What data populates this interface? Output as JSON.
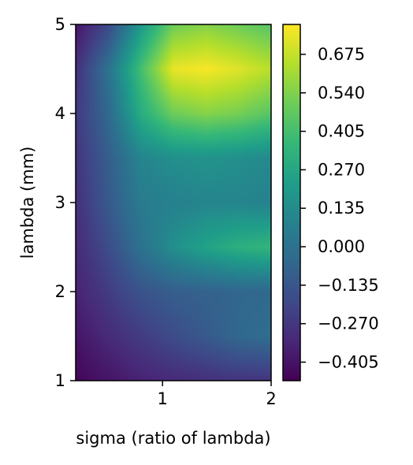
{
  "chart_data": {
    "type": "heatmap",
    "title": "",
    "xlabel": "sigma (ratio of lambda)",
    "ylabel": "lambda (mm)",
    "xlim": [
      0.2,
      2.0
    ],
    "ylim": [
      1,
      5
    ],
    "x_ticks": [
      "1",
      "2"
    ],
    "x_tick_values": [
      1,
      2
    ],
    "y_ticks": [
      "1",
      "2",
      "3",
      "4",
      "5"
    ],
    "y_tick_values": [
      1,
      2,
      3,
      4,
      5
    ],
    "colormap": "viridis",
    "color_range": [
      -0.47,
      0.78
    ],
    "colorbar_ticks": [
      "0.675",
      "0.540",
      "0.405",
      "0.270",
      "0.135",
      "0.000",
      "−0.135",
      "−0.270",
      "−0.405"
    ],
    "colorbar_tick_values": [
      0.675,
      0.54,
      0.405,
      0.27,
      0.135,
      0.0,
      -0.135,
      -0.27,
      -0.405
    ],
    "grid": false,
    "sigma": [
      0.2,
      0.5,
      0.8,
      1.1,
      1.4,
      1.7,
      2.0
    ],
    "lambda": [
      1.0,
      1.5,
      2.0,
      2.5,
      3.0,
      3.5,
      4.0,
      4.5,
      5.0
    ],
    "values": [
      [
        -0.45,
        -0.4,
        -0.35,
        -0.32,
        -0.3,
        -0.28,
        -0.28
      ],
      [
        -0.4,
        -0.32,
        -0.25,
        -0.18,
        -0.12,
        -0.05,
        -0.02
      ],
      [
        -0.35,
        -0.25,
        -0.15,
        -0.1,
        -0.08,
        -0.06,
        -0.05
      ],
      [
        -0.32,
        -0.18,
        0.0,
        0.15,
        0.25,
        0.32,
        0.35
      ],
      [
        -0.3,
        -0.12,
        0.05,
        0.08,
        0.1,
        0.1,
        0.08
      ],
      [
        -0.28,
        -0.1,
        0.1,
        0.15,
        0.17,
        0.15,
        0.12
      ],
      [
        -0.26,
        -0.05,
        0.3,
        0.5,
        0.55,
        0.52,
        0.45
      ],
      [
        -0.3,
        0.0,
        0.4,
        0.74,
        0.77,
        0.72,
        0.65
      ],
      [
        -0.4,
        -0.2,
        0.2,
        0.5,
        0.55,
        0.5,
        0.45
      ]
    ]
  }
}
